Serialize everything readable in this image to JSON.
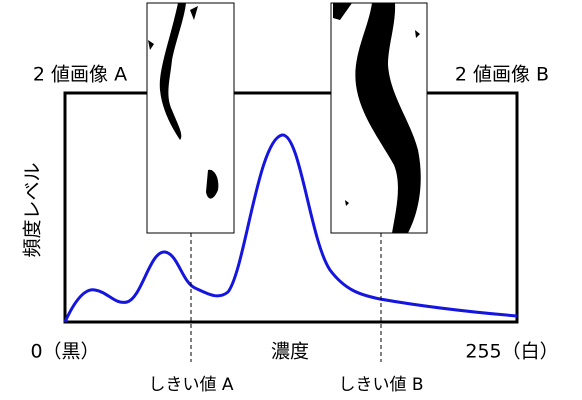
{
  "labels": {
    "image_a": "2 値画像 A",
    "image_b": "2 値画像 B",
    "y_axis": "頻度レベル",
    "x_left": "0（黒）",
    "x_center": "濃度",
    "x_right": "255（白）",
    "threshold_a": "しきい値 A",
    "threshold_b": "しきい値 B"
  }
}
